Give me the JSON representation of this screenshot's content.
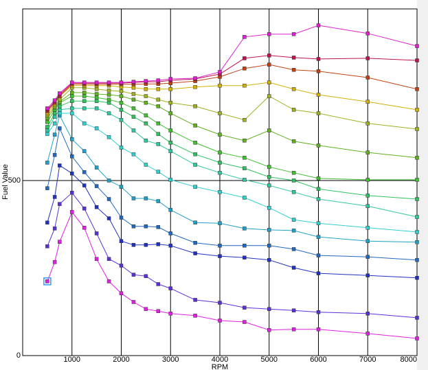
{
  "chart_data": {
    "type": "line",
    "xlabel": "RPM",
    "ylabel": "Fuel Value",
    "x": [
      500,
      650,
      750,
      1000,
      1250,
      1500,
      1750,
      2000,
      2250,
      2500,
      2750,
      3000,
      3500,
      4000,
      4500,
      5000,
      5500,
      6000,
      7000,
      8000
    ],
    "xlim": [
      0,
      8000
    ],
    "xticks": [
      1000,
      2000,
      3000,
      4000,
      5000,
      6000,
      7000,
      8000
    ],
    "ylim": [
      0,
      990
    ],
    "yticks": [
      0,
      500
    ],
    "grid": true,
    "series": [
      {
        "color": "#e020e0",
        "values": [
          212,
          267,
          325,
          410,
          365,
          276,
          212,
          178,
          153,
          133,
          127,
          120,
          114,
          100,
          96,
          73,
          75,
          75,
          63,
          49
        ]
      },
      {
        "color": "#5b30d8",
        "values": [
          312,
          363,
          433,
          465,
          420,
          349,
          276,
          257,
          231,
          227,
          204,
          192,
          159,
          151,
          137,
          133,
          129,
          124,
          120,
          108
        ]
      },
      {
        "color": "#2030c0",
        "values": [
          380,
          453,
          543,
          520,
          486,
          424,
          392,
          327,
          316,
          316,
          318,
          314,
          292,
          284,
          280,
          273,
          251,
          235,
          229,
          222
        ]
      },
      {
        "color": "#2068c0",
        "values": [
          478,
          573,
          649,
          569,
          524,
          484,
          447,
          394,
          369,
          369,
          367,
          349,
          322,
          314,
          314,
          314,
          304,
          286,
          282,
          273
        ]
      },
      {
        "color": "#20a0c8",
        "values": [
          551,
          631,
          686,
          618,
          584,
          537,
          500,
          482,
          449,
          449,
          441,
          416,
          380,
          378,
          363,
          359,
          357,
          339,
          327,
          324
        ]
      },
      {
        "color": "#30d0d0",
        "values": [
          633,
          663,
          692,
          692,
          663,
          649,
          624,
          594,
          575,
          545,
          525,
          502,
          482,
          467,
          451,
          422,
          388,
          378,
          365,
          353
        ]
      },
      {
        "color": "#30c8a0",
        "values": [
          643,
          682,
          702,
          706,
          706,
          706,
          692,
          673,
          643,
          614,
          604,
          584,
          545,
          522,
          502,
          486,
          467,
          447,
          427,
          396
        ]
      },
      {
        "color": "#30c060",
        "values": [
          653,
          692,
          712,
          727,
          727,
          727,
          722,
          702,
          682,
          663,
          633,
          608,
          575,
          551,
          535,
          510,
          500,
          476,
          457,
          447
        ]
      },
      {
        "color": "#40c030",
        "values": [
          667,
          702,
          722,
          741,
          741,
          737,
          731,
          722,
          706,
          686,
          663,
          643,
          608,
          580,
          565,
          539,
          522,
          506,
          502,
          502
        ]
      },
      {
        "color": "#60b020",
        "values": [
          678,
          708,
          725,
          751,
          751,
          747,
          745,
          741,
          731,
          722,
          712,
          692,
          657,
          631,
          614,
          643,
          612,
          600,
          580,
          565
        ]
      },
      {
        "color": "#a0b020",
        "values": [
          686,
          712,
          731,
          765,
          765,
          761,
          757,
          755,
          747,
          741,
          731,
          722,
          712,
          692,
          673,
          741,
          702,
          692,
          663,
          647
        ]
      },
      {
        "color": "#d0b000",
        "values": [
          692,
          718,
          741,
          771,
          771,
          771,
          771,
          767,
          765,
          761,
          761,
          761,
          767,
          771,
          771,
          780,
          761,
          745,
          725,
          702
        ]
      },
      {
        "color": "#c04010",
        "values": [
          698,
          722,
          741,
          775,
          775,
          775,
          775,
          775,
          775,
          776,
          776,
          778,
          784,
          796,
          820,
          831,
          816,
          812,
          794,
          761
        ]
      },
      {
        "color": "#c01050",
        "values": [
          702,
          725,
          745,
          778,
          778,
          778,
          778,
          778,
          780,
          782,
          782,
          786,
          790,
          804,
          849,
          857,
          851,
          847,
          849,
          843
        ]
      },
      {
        "color": "#e020d0",
        "values": [
          706,
          729,
          749,
          780,
          780,
          780,
          780,
          780,
          782,
          784,
          786,
          790,
          792,
          810,
          910,
          918,
          918,
          943,
          920,
          884
        ]
      }
    ]
  }
}
